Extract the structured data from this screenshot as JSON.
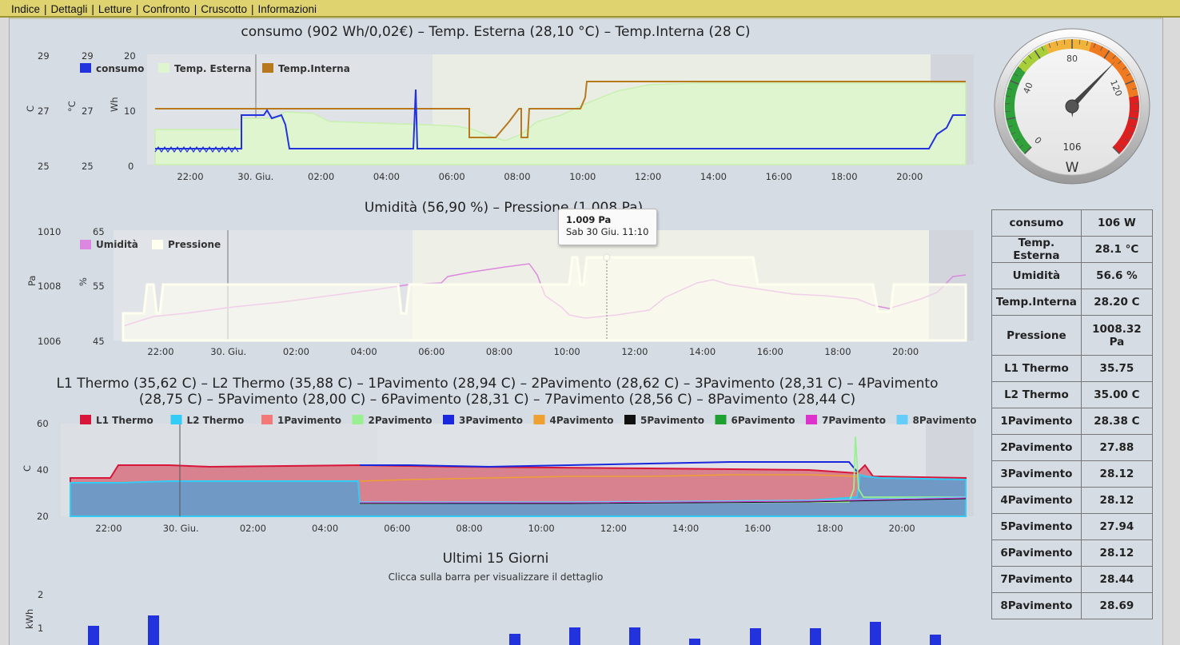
{
  "nav": {
    "items": [
      "Indice",
      "Dettagli",
      "Letture",
      "Confronto",
      "Cruscotto",
      "Informazioni"
    ]
  },
  "chart1": {
    "title": "consumo (902 Wh/0,02€) – Temp. Esterna (28,10 °C) – Temp.Interna (28 C)",
    "legend": [
      "consumo",
      "Temp. Esterna",
      "Temp.Interna"
    ],
    "axes": {
      "left1": {
        "unit": "C",
        "ticks": [
          "29",
          "27",
          "25"
        ]
      },
      "left2": {
        "unit": "°C",
        "ticks": [
          "29",
          "27",
          "25"
        ]
      },
      "left3": {
        "unit": "Wh",
        "ticks": [
          "20",
          "10",
          "0"
        ]
      }
    },
    "xticks": [
      "22:00",
      "30. Giu.",
      "02:00",
      "04:00",
      "06:00",
      "08:00",
      "10:00",
      "12:00",
      "14:00",
      "16:00",
      "18:00",
      "20:00"
    ]
  },
  "chart2": {
    "title": "Umidità (56,90 %) – Pressione (1.008 Pa)",
    "legend": [
      "Umidità",
      "Pressione"
    ],
    "axes": {
      "left1": {
        "unit": "Pa",
        "ticks": [
          "1010",
          "1008",
          "1006"
        ]
      },
      "left2": {
        "unit": "%",
        "ticks": [
          "65",
          "55",
          "45"
        ]
      }
    },
    "xticks": [
      "22:00",
      "30. Giu.",
      "02:00",
      "04:00",
      "06:00",
      "08:00",
      "10:00",
      "12:00",
      "14:00",
      "16:00",
      "18:00",
      "20:00"
    ],
    "tooltip": {
      "value": "1.009 Pa",
      "time": "Sab 30 Giu. 11:10"
    }
  },
  "chart3": {
    "title_line1": "L1 Thermo (35,62 C) – L2 Thermo (35,88 C) – 1Pavimento (28,94 C) – 2Pavimento (28,62 C) – 3Pavimento (28,31 C) – 4Pavimento",
    "title_line2": "(28,75 C) – 5Pavimento (28,00 C) – 6Pavimento (28,31 C) – 7Pavimento (28,56 C) – 8Pavimento (28,44 C)",
    "legend": [
      "L1 Thermo",
      "L2 Thermo",
      "1Pavimento",
      "2Pavimento",
      "3Pavimento",
      "4Pavimento",
      "5Pavimento",
      "6Pavimento",
      "7Pavimento",
      "8Pavimento"
    ],
    "axis": {
      "unit": "C",
      "ticks": [
        "60",
        "40",
        "20"
      ]
    },
    "xticks": [
      "22:00",
      "30. Giu.",
      "02:00",
      "04:00",
      "06:00",
      "08:00",
      "10:00",
      "12:00",
      "14:00",
      "16:00",
      "18:00",
      "20:00"
    ]
  },
  "chart4": {
    "title": "Ultimi 15 Giorni",
    "subtitle": "Clicca sulla barra per visualizzare il dettaglio",
    "axis": {
      "unit": "kWh",
      "ticks": [
        "2",
        "1"
      ]
    }
  },
  "gauge": {
    "value": 106,
    "value_label": "106",
    "unit": "W",
    "ticks": [
      "0",
      "40",
      "80",
      "120"
    ],
    "min": 0,
    "max": 160
  },
  "stats": [
    {
      "label": "consumo",
      "value": "106 W"
    },
    {
      "label": "Temp. Esterna",
      "value": "28.1 °C"
    },
    {
      "label": "Umidità",
      "value": "56.6 %"
    },
    {
      "label": "Temp.Interna",
      "value": "28.20 C"
    },
    {
      "label": "Pressione",
      "value": "1008.32 Pa"
    },
    {
      "label": "L1 Thermo",
      "value": "35.75"
    },
    {
      "label": "L2 Thermo",
      "value": "35.00 C"
    },
    {
      "label": "1Pavimento",
      "value": "28.38 C"
    },
    {
      "label": "2Pavimento",
      "value": "27.88"
    },
    {
      "label": "3Pavimento",
      "value": "28.12"
    },
    {
      "label": "4Pavimento",
      "value": "28.12"
    },
    {
      "label": "5Pavimento",
      "value": "27.94"
    },
    {
      "label": "6Pavimento",
      "value": "28.12"
    },
    {
      "label": "7Pavimento",
      "value": "28.44"
    },
    {
      "label": "8Pavimento",
      "value": "28.69"
    }
  ],
  "colors": {
    "consumo": "#2233dd",
    "temp_esterna": "#dff5d0",
    "temp_interna": "#b8791e",
    "umidita": "#dd88e0",
    "pressione": "#fffff0",
    "l1": "#d8163a",
    "l2": "#33ccf5",
    "p1": "#f47878",
    "p2": "#99f090",
    "p3": "#1a28dd",
    "p4": "#eea030",
    "p5": "#111111",
    "p6": "#20a030",
    "p7": "#dd33cc",
    "p8": "#66ccf8"
  }
}
